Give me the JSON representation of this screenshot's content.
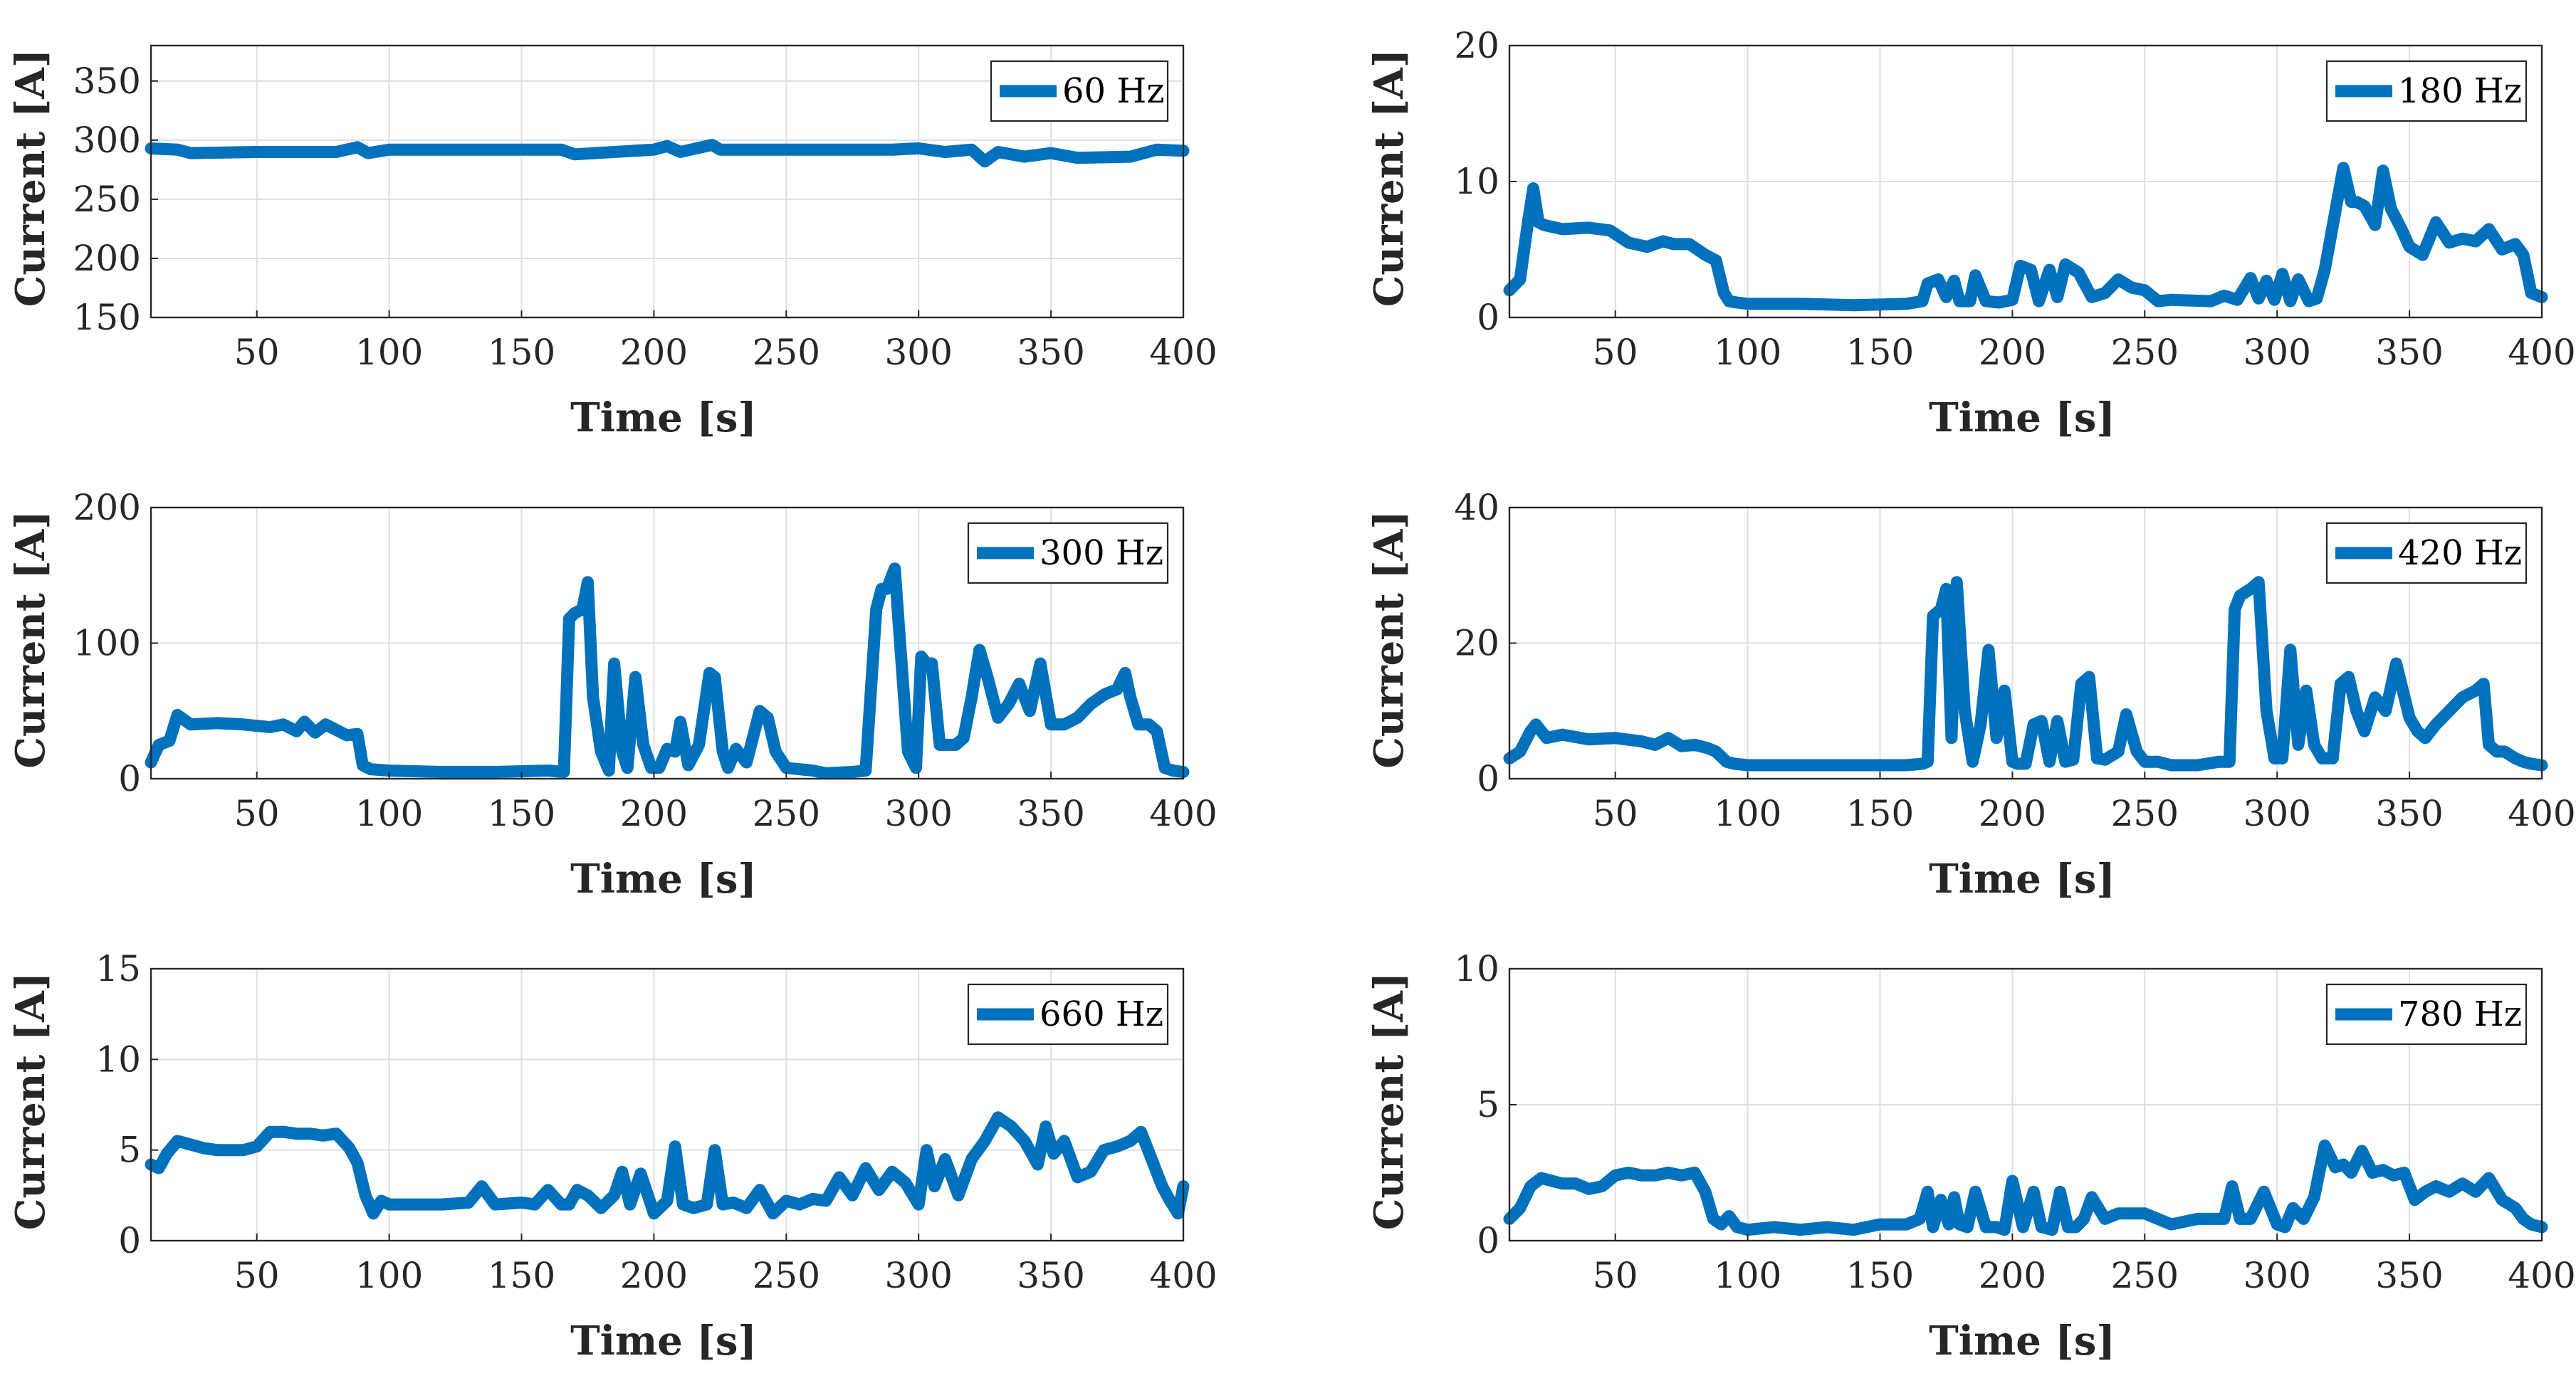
{
  "colors": {
    "series": "#0072BD",
    "axis": "#262626",
    "grid": "#dfdfdf"
  },
  "chart_data": [
    {
      "type": "line",
      "legend": "60 Hz",
      "legend_position": "top-right",
      "xlabel": "Time [s]",
      "ylabel": "Current [A]",
      "xlim": [
        10,
        400
      ],
      "ylim": [
        150,
        380
      ],
      "xticks": [
        50,
        100,
        150,
        200,
        250,
        300,
        350,
        400
      ],
      "yticks": [
        150,
        200,
        250,
        300,
        350
      ],
      "x": [
        10,
        20,
        25,
        50,
        80,
        88,
        92,
        100,
        150,
        165,
        170,
        200,
        205,
        210,
        222,
        225,
        260,
        290,
        300,
        310,
        320,
        325,
        330,
        340,
        350,
        360,
        380,
        390,
        400
      ],
      "y": [
        293,
        292,
        289,
        290,
        290,
        294,
        289,
        292,
        292,
        292,
        288,
        292,
        295,
        290,
        296,
        292,
        292,
        292,
        293,
        290,
        292,
        282,
        290,
        286,
        289,
        285,
        286,
        292,
        291
      ]
    },
    {
      "type": "line",
      "legend": "180 Hz",
      "legend_position": "top-right",
      "xlabel": "Time [s]",
      "ylabel": "Current [A]",
      "xlim": [
        10,
        400
      ],
      "ylim": [
        0,
        20
      ],
      "xticks": [
        50,
        100,
        150,
        200,
        250,
        300,
        350,
        400
      ],
      "yticks": [
        0,
        10,
        20
      ],
      "x": [
        10,
        14,
        17,
        19,
        21,
        23,
        30,
        40,
        48,
        55,
        62,
        68,
        72,
        78,
        84,
        88,
        91,
        93,
        96,
        100,
        120,
        140,
        160,
        166,
        168,
        172,
        175,
        178,
        180,
        184,
        186,
        190,
        195,
        200,
        203,
        207,
        210,
        214,
        217,
        220,
        225,
        230,
        235,
        240,
        245,
        250,
        255,
        260,
        275,
        280,
        285,
        290,
        293,
        296,
        299,
        302,
        305,
        308,
        312,
        315,
        318,
        322,
        325,
        328,
        330,
        333,
        337,
        340,
        343,
        347,
        350,
        355,
        360,
        365,
        370,
        375,
        380,
        385,
        390,
        393,
        396,
        400
      ],
      "y": [
        2,
        2.8,
        7,
        9.5,
        7,
        6.8,
        6.5,
        6.6,
        6.4,
        5.5,
        5.2,
        5.6,
        5.4,
        5.4,
        4.6,
        4.2,
        1.8,
        1.2,
        1.1,
        1.0,
        1.0,
        0.9,
        1.0,
        1.2,
        2.5,
        2.8,
        1.5,
        2.7,
        1.2,
        1.2,
        3.1,
        1.2,
        1.1,
        1.3,
        3.8,
        3.5,
        1.2,
        3.5,
        1.5,
        3.9,
        3.3,
        1.5,
        1.8,
        2.8,
        2.2,
        2.0,
        1.2,
        1.3,
        1.2,
        1.6,
        1.3,
        2.9,
        1.4,
        2.7,
        1.3,
        3.2,
        1.2,
        2.8,
        1.2,
        1.4,
        3.5,
        7.8,
        11.0,
        8.5,
        8.5,
        8.2,
        6.8,
        10.8,
        8.0,
        6.5,
        5.2,
        4.6,
        7.0,
        5.5,
        5.8,
        5.6,
        6.5,
        5.0,
        5.4,
        4.6,
        1.8,
        1.5
      ]
    },
    {
      "type": "line",
      "legend": "300 Hz",
      "legend_position": "top-right",
      "xlabel": "Time [s]",
      "ylabel": "Current [A]",
      "xlim": [
        10,
        400
      ],
      "ylim": [
        0,
        200
      ],
      "xticks": [
        50,
        100,
        150,
        200,
        250,
        300,
        350,
        400
      ],
      "yticks": [
        0,
        100,
        200
      ],
      "x": [
        10,
        13,
        17,
        20,
        25,
        35,
        45,
        55,
        60,
        65,
        68,
        72,
        76,
        80,
        84,
        88,
        90,
        93,
        100,
        120,
        140,
        160,
        166,
        168,
        170,
        173,
        175,
        177,
        180,
        183,
        185,
        188,
        190,
        193,
        196,
        199,
        202,
        205,
        208,
        210,
        213,
        217,
        221,
        223,
        226,
        228,
        231,
        235,
        240,
        243,
        246,
        250,
        255,
        260,
        265,
        275,
        280,
        284,
        286,
        288,
        291,
        293,
        296,
        299,
        301,
        303,
        305,
        308,
        311,
        314,
        317,
        320,
        323,
        326,
        330,
        334,
        338,
        342,
        346,
        350,
        355,
        360,
        365,
        370,
        375,
        378,
        380,
        383,
        387,
        390,
        393,
        396,
        400
      ],
      "y": [
        12,
        25,
        28,
        47,
        40,
        41,
        40,
        38,
        40,
        35,
        42,
        34,
        40,
        36,
        32,
        33,
        10,
        7,
        6,
        5,
        5,
        6,
        5,
        118,
        122,
        125,
        145,
        60,
        20,
        6,
        85,
        20,
        8,
        75,
        25,
        8,
        8,
        22,
        20,
        42,
        10,
        25,
        78,
        75,
        20,
        8,
        22,
        12,
        50,
        45,
        20,
        8,
        7,
        6,
        4,
        5,
        6,
        125,
        140,
        140,
        155,
        100,
        20,
        8,
        90,
        85,
        85,
        25,
        25,
        25,
        30,
        60,
        95,
        75,
        45,
        55,
        70,
        50,
        85,
        40,
        40,
        45,
        55,
        62,
        66,
        78,
        60,
        40,
        40,
        35,
        8,
        6,
        5
      ]
    },
    {
      "type": "line",
      "legend": "420 Hz",
      "legend_position": "top-right",
      "xlabel": "Time [s]",
      "ylabel": "Current [A]",
      "xlim": [
        10,
        400
      ],
      "ylim": [
        0,
        40
      ],
      "xticks": [
        50,
        100,
        150,
        200,
        250,
        300,
        350,
        400
      ],
      "yticks": [
        0,
        20,
        40
      ],
      "x": [
        10,
        14,
        18,
        20,
        24,
        30,
        40,
        50,
        60,
        65,
        70,
        75,
        80,
        85,
        88,
        92,
        95,
        100,
        120,
        140,
        160,
        166,
        168,
        170,
        173,
        175,
        177,
        179,
        182,
        185,
        188,
        191,
        194,
        197,
        200,
        202,
        205,
        208,
        211,
        214,
        217,
        220,
        223,
        226,
        229,
        232,
        235,
        240,
        243,
        247,
        250,
        255,
        260,
        270,
        278,
        282,
        284,
        286,
        290,
        293,
        296,
        299,
        302,
        305,
        308,
        311,
        314,
        317,
        321,
        324,
        327,
        330,
        333,
        337,
        341,
        345,
        350,
        353,
        356,
        360,
        365,
        370,
        375,
        378,
        380,
        383,
        386,
        390,
        393,
        396,
        400
      ],
      "y": [
        3,
        4,
        7,
        8,
        6,
        6.5,
        5.8,
        6,
        5.5,
        5,
        6,
        4.8,
        5,
        4.5,
        4,
        2.5,
        2.2,
        2,
        2,
        2,
        2,
        2.2,
        2.5,
        24,
        25,
        28,
        6,
        29,
        10,
        2.5,
        8,
        19,
        6,
        13,
        2.5,
        2.2,
        2.2,
        8,
        8.5,
        2.5,
        8.5,
        2.5,
        2.8,
        14,
        15,
        3,
        2.8,
        4,
        9.5,
        4,
        2.5,
        2.5,
        2,
        2,
        2.5,
        2.5,
        25,
        27,
        28,
        29,
        10,
        3,
        3,
        19,
        5,
        13,
        5,
        3,
        3,
        14,
        15,
        10,
        7,
        12,
        10,
        17,
        9,
        7,
        6,
        8,
        10,
        12,
        13,
        14,
        5,
        4,
        4,
        3,
        2.5,
        2.2,
        2
      ]
    },
    {
      "type": "line",
      "legend": "660 Hz",
      "legend_position": "top-right",
      "xlabel": "Time [s]",
      "ylabel": "Current [A]",
      "xlim": [
        10,
        400
      ],
      "ylim": [
        0,
        15
      ],
      "xticks": [
        50,
        100,
        150,
        200,
        250,
        300,
        350,
        400
      ],
      "yticks": [
        0,
        5,
        10,
        15
      ],
      "x": [
        10,
        13,
        16,
        20,
        25,
        30,
        35,
        40,
        45,
        50,
        55,
        60,
        65,
        70,
        75,
        80,
        85,
        88,
        91,
        94,
        97,
        100,
        110,
        120,
        130,
        135,
        140,
        150,
        155,
        160,
        165,
        168,
        171,
        175,
        180,
        185,
        188,
        191,
        195,
        200,
        205,
        208,
        211,
        215,
        220,
        223,
        226,
        230,
        235,
        240,
        245,
        250,
        255,
        260,
        265,
        270,
        275,
        280,
        285,
        290,
        295,
        300,
        303,
        306,
        310,
        315,
        320,
        325,
        330,
        335,
        340,
        345,
        348,
        351,
        355,
        360,
        365,
        370,
        375,
        380,
        384,
        388,
        392,
        395,
        398,
        400
      ],
      "y": [
        4.2,
        4,
        4.8,
        5.5,
        5.3,
        5.1,
        5,
        5,
        5,
        5.2,
        6,
        6,
        5.9,
        5.9,
        5.8,
        5.9,
        5.1,
        4.3,
        2.5,
        1.5,
        2.2,
        2,
        2,
        2,
        2.1,
        3,
        2,
        2.1,
        2,
        2.8,
        2,
        2,
        2.8,
        2.5,
        1.8,
        2.5,
        3.8,
        2,
        3.7,
        1.5,
        2.2,
        5.2,
        2,
        1.8,
        2,
        5,
        2,
        2.1,
        1.8,
        2.8,
        1.5,
        2.2,
        2,
        2.3,
        2.2,
        3.5,
        2.5,
        4,
        2.8,
        3.8,
        3.2,
        2,
        5,
        3,
        4.5,
        2.5,
        4.5,
        5.5,
        6.8,
        6.3,
        5.5,
        4.2,
        6.3,
        4.8,
        5.5,
        3.5,
        3.8,
        5,
        5.2,
        5.5,
        6,
        4.5,
        3,
        2.2,
        1.5,
        3
      ]
    },
    {
      "type": "line",
      "legend": "780 Hz",
      "legend_position": "top-right",
      "xlabel": "Time [s]",
      "ylabel": "Current [A]",
      "xlim": [
        10,
        400
      ],
      "ylim": [
        0,
        10
      ],
      "xticks": [
        50,
        100,
        150,
        200,
        250,
        300,
        350,
        400
      ],
      "yticks": [
        0,
        5,
        10
      ],
      "x": [
        10,
        14,
        18,
        22,
        26,
        30,
        35,
        40,
        45,
        50,
        55,
        60,
        65,
        70,
        75,
        80,
        84,
        87,
        90,
        93,
        96,
        100,
        110,
        120,
        130,
        140,
        150,
        160,
        165,
        168,
        170,
        173,
        176,
        178,
        180,
        183,
        186,
        190,
        194,
        197,
        200,
        204,
        208,
        211,
        215,
        218,
        221,
        224,
        227,
        230,
        235,
        240,
        245,
        250,
        260,
        270,
        280,
        283,
        286,
        290,
        295,
        300,
        303,
        306,
        310,
        314,
        318,
        322,
        325,
        328,
        332,
        336,
        340,
        344,
        348,
        352,
        356,
        360,
        365,
        370,
        375,
        380,
        385,
        390,
        393,
        396,
        400
      ],
      "y": [
        0.8,
        1.2,
        2,
        2.3,
        2.2,
        2.1,
        2.1,
        1.9,
        2,
        2.4,
        2.5,
        2.4,
        2.4,
        2.5,
        2.4,
        2.5,
        1.8,
        0.8,
        0.6,
        0.9,
        0.5,
        0.4,
        0.5,
        0.4,
        0.5,
        0.4,
        0.6,
        0.6,
        0.8,
        1.8,
        0.5,
        1.5,
        0.6,
        1.6,
        0.6,
        0.5,
        1.8,
        0.5,
        0.5,
        0.4,
        2.2,
        0.5,
        1.8,
        0.5,
        0.4,
        1.8,
        0.5,
        0.5,
        0.8,
        1.6,
        0.8,
        1.0,
        1.0,
        1.0,
        0.6,
        0.8,
        0.8,
        2,
        0.8,
        0.8,
        1.8,
        0.6,
        0.5,
        1.2,
        0.8,
        1.6,
        3.5,
        2.7,
        2.8,
        2.5,
        3.3,
        2.5,
        2.6,
        2.4,
        2.5,
        1.5,
        1.8,
        2.0,
        1.8,
        2.1,
        1.8,
        2.3,
        1.5,
        1.2,
        0.8,
        0.6,
        0.5
      ]
    }
  ]
}
